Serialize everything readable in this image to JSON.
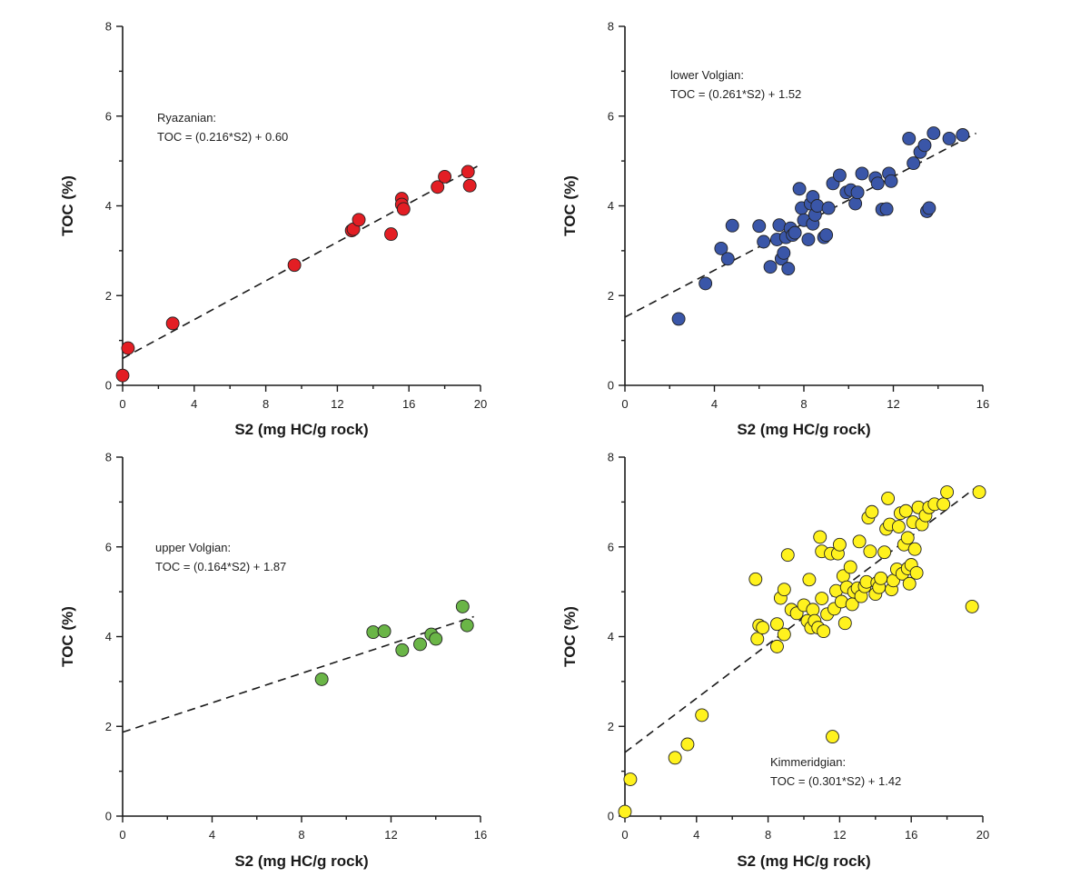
{
  "chart_data": [
    {
      "type": "scatter",
      "panel": "top-left",
      "color": "#e31e24",
      "xlabel": "S2 (mg HC/g rock)",
      "ylabel": "TOC (%)",
      "xlim": [
        0,
        20
      ],
      "ylim": [
        0,
        8
      ],
      "xticks": [
        0,
        4,
        8,
        12,
        16,
        20
      ],
      "yticks": [
        0,
        2,
        4,
        6,
        8
      ],
      "annotation": [
        "Ryazanian:",
        "TOC = (0.216*S2)  + 0.60"
      ],
      "fit": {
        "slope": 0.216,
        "intercept": 0.6,
        "x_range": [
          0,
          20
        ]
      },
      "points": [
        [
          0.0,
          0.22
        ],
        [
          0.3,
          0.83
        ],
        [
          2.8,
          1.38
        ],
        [
          9.6,
          2.68
        ],
        [
          12.8,
          3.45
        ],
        [
          12.9,
          3.48
        ],
        [
          13.2,
          3.69
        ],
        [
          15.0,
          3.37
        ],
        [
          15.6,
          4.16
        ],
        [
          15.6,
          4.03
        ],
        [
          15.7,
          3.93
        ],
        [
          17.6,
          4.42
        ],
        [
          18.0,
          4.65
        ],
        [
          19.3,
          4.76
        ],
        [
          19.4,
          4.45
        ]
      ]
    },
    {
      "type": "scatter",
      "panel": "top-right",
      "color": "#3a56a8",
      "xlabel": "S2 (mg HC/g rock)",
      "ylabel": "TOC (%)",
      "xlim": [
        0,
        16
      ],
      "ylim": [
        0,
        8
      ],
      "xticks": [
        0,
        4,
        8,
        12,
        16
      ],
      "yticks": [
        0,
        2,
        4,
        6,
        8
      ],
      "annotation": [
        "lower Volgian:",
        "TOC = (0.261*S2)  + 1.52"
      ],
      "fit": {
        "slope": 0.261,
        "intercept": 1.52,
        "x_range": [
          0,
          15.7
        ]
      },
      "points": [
        [
          2.4,
          1.48
        ],
        [
          3.6,
          2.27
        ],
        [
          4.3,
          3.05
        ],
        [
          4.6,
          2.82
        ],
        [
          4.8,
          3.56
        ],
        [
          6.0,
          3.55
        ],
        [
          6.2,
          3.2
        ],
        [
          6.5,
          2.64
        ],
        [
          6.8,
          3.25
        ],
        [
          6.9,
          3.57
        ],
        [
          7.0,
          2.82
        ],
        [
          7.1,
          2.95
        ],
        [
          7.2,
          3.3
        ],
        [
          7.3,
          2.6
        ],
        [
          7.4,
          3.5
        ],
        [
          7.5,
          3.35
        ],
        [
          7.6,
          3.4
        ],
        [
          7.8,
          4.38
        ],
        [
          7.9,
          3.95
        ],
        [
          8.0,
          3.68
        ],
        [
          8.2,
          3.25
        ],
        [
          8.3,
          4.05
        ],
        [
          8.4,
          4.2
        ],
        [
          8.4,
          3.6
        ],
        [
          8.5,
          3.8
        ],
        [
          8.6,
          4.0
        ],
        [
          8.9,
          3.3
        ],
        [
          9.0,
          3.35
        ],
        [
          9.1,
          3.95
        ],
        [
          9.3,
          4.5
        ],
        [
          9.6,
          4.68
        ],
        [
          9.9,
          4.3
        ],
        [
          10.1,
          4.35
        ],
        [
          10.3,
          4.05
        ],
        [
          10.4,
          4.3
        ],
        [
          10.6,
          4.72
        ],
        [
          11.2,
          4.62
        ],
        [
          11.3,
          4.5
        ],
        [
          11.5,
          3.92
        ],
        [
          11.7,
          3.93
        ],
        [
          11.8,
          4.72
        ],
        [
          11.9,
          4.55
        ],
        [
          12.7,
          5.5
        ],
        [
          12.9,
          4.95
        ],
        [
          13.2,
          5.2
        ],
        [
          13.4,
          5.35
        ],
        [
          13.5,
          3.88
        ],
        [
          13.6,
          3.95
        ],
        [
          13.8,
          5.62
        ],
        [
          14.5,
          5.5
        ],
        [
          15.1,
          5.58
        ]
      ]
    },
    {
      "type": "scatter",
      "panel": "bottom-left",
      "color": "#6ab547",
      "xlabel": "S2 (mg HC/g rock)",
      "ylabel": "TOC (%)",
      "xlim": [
        0,
        16
      ],
      "ylim": [
        0,
        8
      ],
      "xticks": [
        0,
        4,
        8,
        12,
        16
      ],
      "yticks": [
        0,
        2,
        4,
        6,
        8
      ],
      "annotation": [
        "upper Volgian:",
        "TOC = (0.164*S2)  + 1.87"
      ],
      "fit": {
        "slope": 0.164,
        "intercept": 1.87,
        "x_range": [
          0,
          15.7
        ]
      },
      "points": [
        [
          8.9,
          3.05
        ],
        [
          11.2,
          4.1
        ],
        [
          11.7,
          4.12
        ],
        [
          12.5,
          3.7
        ],
        [
          13.3,
          3.83
        ],
        [
          13.8,
          4.05
        ],
        [
          14.0,
          3.95
        ],
        [
          15.2,
          4.67
        ],
        [
          15.4,
          4.25
        ]
      ]
    },
    {
      "type": "scatter",
      "panel": "bottom-right",
      "color": "#fff21e",
      "xlabel": "S2 (mg HC/g rock)",
      "ylabel": "TOC (%)",
      "xlim": [
        0,
        20
      ],
      "ylim": [
        0,
        8
      ],
      "xticks": [
        0,
        4,
        8,
        12,
        16,
        20
      ],
      "yticks": [
        0,
        2,
        4,
        6,
        8
      ],
      "annotation": [
        "Kimmeridgian:",
        "TOC = (0.301*S2) + 1.42"
      ],
      "fit": {
        "slope": 0.301,
        "intercept": 1.42,
        "x_range": [
          0,
          19.7
        ]
      },
      "points": [
        [
          0.0,
          0.1
        ],
        [
          0.3,
          0.82
        ],
        [
          2.8,
          1.3
        ],
        [
          3.5,
          1.6
        ],
        [
          4.3,
          2.25
        ],
        [
          7.3,
          5.28
        ],
        [
          7.4,
          3.95
        ],
        [
          7.5,
          4.25
        ],
        [
          7.7,
          4.2
        ],
        [
          8.5,
          3.78
        ],
        [
          8.5,
          4.28
        ],
        [
          8.7,
          4.86
        ],
        [
          8.9,
          5.05
        ],
        [
          8.9,
          4.05
        ],
        [
          9.1,
          5.82
        ],
        [
          9.3,
          4.6
        ],
        [
          9.6,
          4.52
        ],
        [
          10.0,
          4.7
        ],
        [
          10.2,
          4.35
        ],
        [
          10.3,
          5.27
        ],
        [
          10.4,
          4.2
        ],
        [
          10.5,
          4.6
        ],
        [
          10.6,
          4.35
        ],
        [
          10.8,
          4.2
        ],
        [
          10.9,
          6.22
        ],
        [
          11.0,
          4.85
        ],
        [
          11.0,
          5.9
        ],
        [
          11.1,
          4.12
        ],
        [
          11.3,
          4.5
        ],
        [
          11.5,
          5.85
        ],
        [
          11.6,
          1.77
        ],
        [
          11.7,
          4.62
        ],
        [
          11.8,
          5.02
        ],
        [
          11.9,
          5.85
        ],
        [
          12.0,
          6.05
        ],
        [
          12.1,
          4.78
        ],
        [
          12.2,
          5.35
        ],
        [
          12.3,
          4.3
        ],
        [
          12.4,
          5.1
        ],
        [
          12.6,
          5.55
        ],
        [
          12.7,
          4.72
        ],
        [
          12.8,
          5.0
        ],
        [
          13.0,
          5.08
        ],
        [
          13.1,
          6.12
        ],
        [
          13.2,
          4.9
        ],
        [
          13.4,
          5.12
        ],
        [
          13.5,
          5.22
        ],
        [
          13.6,
          6.65
        ],
        [
          13.7,
          5.9
        ],
        [
          13.8,
          6.78
        ],
        [
          14.0,
          4.95
        ],
        [
          14.1,
          5.2
        ],
        [
          14.2,
          5.1
        ],
        [
          14.3,
          5.3
        ],
        [
          14.5,
          5.88
        ],
        [
          14.6,
          6.4
        ],
        [
          14.7,
          7.08
        ],
        [
          14.8,
          6.5
        ],
        [
          14.9,
          5.05
        ],
        [
          15.0,
          5.25
        ],
        [
          15.2,
          5.5
        ],
        [
          15.3,
          6.45
        ],
        [
          15.4,
          6.75
        ],
        [
          15.5,
          5.4
        ],
        [
          15.6,
          6.05
        ],
        [
          15.7,
          6.8
        ],
        [
          15.8,
          5.52
        ],
        [
          15.8,
          6.2
        ],
        [
          15.9,
          5.18
        ],
        [
          16.0,
          5.6
        ],
        [
          16.1,
          6.55
        ],
        [
          16.2,
          5.95
        ],
        [
          16.3,
          5.42
        ],
        [
          16.4,
          6.88
        ],
        [
          16.6,
          6.5
        ],
        [
          16.8,
          6.7
        ],
        [
          17.0,
          6.88
        ],
        [
          17.3,
          6.95
        ],
        [
          17.8,
          6.95
        ],
        [
          18.0,
          7.22
        ],
        [
          19.4,
          4.67
        ],
        [
          19.8,
          7.22
        ]
      ]
    }
  ]
}
